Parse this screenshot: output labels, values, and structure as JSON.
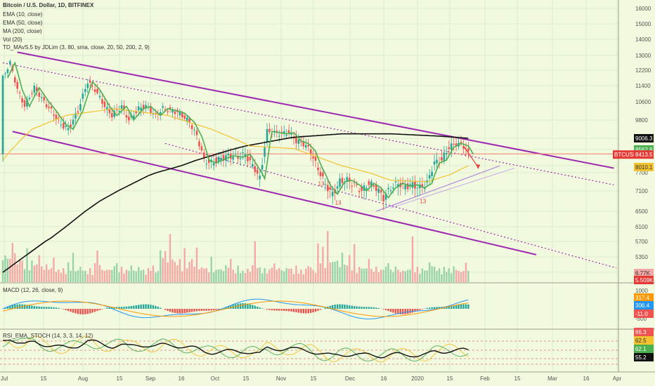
{
  "header": {
    "title": "Bitcoin / U.S. Dollar, 1D, BITFINEX",
    "indicators": [
      "EMA (10, close)",
      "EMA (50, close)",
      "MA (200, close)",
      "Vol (20)",
      "TD_MAvS.5 by JDLim (3, 80, sma, close, 20, 50, 200, 2, 9)"
    ]
  },
  "panes": {
    "macd_label": "MACD (12, 26, close, 9)",
    "rsi_label": "RSI_EMA_STOCH (14, 3, 3, 14, 12)"
  },
  "colors": {
    "background": "#f1fadf",
    "up": "#26a69a",
    "down": "#ef5350",
    "channel": "#9c27b0",
    "ema10": "#4caf50",
    "ema50": "#f2c230",
    "ma200": "#111111",
    "resistance": "#f77c6a"
  },
  "chart_data": {
    "type": "candlestick",
    "symbol": "BTCUSD",
    "timeframe": "1D",
    "exchange": "BITFINEX",
    "x_ticks": [
      "Jul",
      "15",
      "Aug",
      "15",
      "Sep",
      "16",
      "Oct",
      "15",
      "Nov",
      "15",
      "Dec",
      "16",
      "2020",
      "15",
      "Feb",
      "15",
      "Mar",
      "16",
      "Apr"
    ],
    "y_ticks": [
      16000,
      15000,
      14000,
      13000,
      12200,
      11400,
      10600,
      9800,
      9006.3,
      8562.9,
      8010.1,
      7700,
      7100,
      6500,
      6100,
      5700,
      5350,
      5000
    ],
    "price_labels": [
      {
        "text": "9006.3",
        "value": 9006.3
      },
      {
        "text": "8562.9",
        "value": 8562.9
      },
      {
        "text": "BTCUSD",
        "value": 8413.5
      },
      {
        "text": "8413.5",
        "value": 8413.5
      },
      {
        "text": "8010.1",
        "value": 8010.1
      }
    ],
    "volume_labels": [
      "6.77K",
      "5.509K"
    ],
    "close_path": [
      [
        0,
        11800
      ],
      [
        3,
        12600
      ],
      [
        6,
        11200
      ],
      [
        9,
        10400
      ],
      [
        13,
        11300
      ],
      [
        17,
        10600
      ],
      [
        20,
        10200
      ],
      [
        24,
        9600
      ],
      [
        27,
        9400
      ],
      [
        31,
        10200
      ],
      [
        35,
        11600
      ],
      [
        38,
        11200
      ],
      [
        42,
        10400
      ],
      [
        45,
        10000
      ],
      [
        49,
        10400
      ],
      [
        52,
        9800
      ],
      [
        56,
        10300
      ],
      [
        59,
        10400
      ],
      [
        63,
        10000
      ],
      [
        66,
        10300
      ],
      [
        70,
        10200
      ],
      [
        73,
        10100
      ],
      [
        77,
        9700
      ],
      [
        80,
        9100
      ],
      [
        83,
        8200
      ],
      [
        86,
        8100
      ],
      [
        90,
        8250
      ],
      [
        93,
        8350
      ],
      [
        97,
        8300
      ],
      [
        100,
        8400
      ],
      [
        103,
        8000
      ],
      [
        106,
        7500
      ],
      [
        109,
        9300
      ],
      [
        112,
        9250
      ],
      [
        115,
        9200
      ],
      [
        118,
        9250
      ],
      [
        121,
        8900
      ],
      [
        124,
        8800
      ],
      [
        127,
        8500
      ],
      [
        130,
        7850
      ],
      [
        133,
        7300
      ],
      [
        136,
        7000
      ],
      [
        139,
        7400
      ],
      [
        142,
        7450
      ],
      [
        145,
        7300
      ],
      [
        148,
        7100
      ],
      [
        151,
        7350
      ],
      [
        154,
        7200
      ],
      [
        157,
        6900
      ],
      [
        160,
        7200
      ],
      [
        163,
        7350
      ],
      [
        166,
        7250
      ],
      [
        169,
        7300
      ],
      [
        172,
        7200
      ],
      [
        175,
        7350
      ],
      [
        178,
        8100
      ],
      [
        181,
        8200
      ],
      [
        184,
        8650
      ],
      [
        187,
        8800
      ],
      [
        190,
        8700
      ],
      [
        192,
        8400
      ]
    ],
    "ema50_path": [
      [
        0,
        8200
      ],
      [
        12,
        9400
      ],
      [
        26,
        10000
      ],
      [
        46,
        10300
      ],
      [
        68,
        10000
      ],
      [
        86,
        9400
      ],
      [
        102,
        8700
      ],
      [
        120,
        8600
      ],
      [
        140,
        8000
      ],
      [
        160,
        7450
      ],
      [
        175,
        7400
      ],
      [
        185,
        7650
      ],
      [
        192,
        8010.1
      ]
    ],
    "ma200_path": [
      [
        0,
        5000
      ],
      [
        20,
        5800
      ],
      [
        40,
        6800
      ],
      [
        60,
        7600
      ],
      [
        80,
        8200
      ],
      [
        100,
        8700
      ],
      [
        120,
        9050
      ],
      [
        140,
        9200
      ],
      [
        160,
        9200
      ],
      [
        180,
        9100
      ],
      [
        192,
        9006.3
      ]
    ],
    "volume": [
      3.2,
      2.1,
      2.8,
      1.9,
      4.0,
      2.5,
      1.6,
      2.2,
      1.8,
      1.4,
      2.7,
      1.5,
      1.7,
      2.2,
      1.4,
      3.0,
      1.3,
      1.2,
      1.6,
      1.1,
      1.4,
      2.0,
      1.2,
      1.0,
      1.3,
      1.1,
      1.0,
      1.6,
      1.2,
      2.5,
      1.0,
      1.1,
      1.3,
      1.2,
      0.9,
      1.0,
      1.1,
      1.0,
      1.5,
      3.6,
      1.4,
      1.2,
      1.0,
      1.1,
      1.2,
      1.0,
      1.8,
      1.5,
      1.3,
      1.2,
      1.1,
      1.0,
      1.2,
      1.4,
      1.1,
      1.0,
      1.3,
      1.2,
      1.0,
      0.9,
      1.1,
      1.6,
      1.3,
      1.1,
      0.9
    ],
    "macd_labels": [
      "1000",
      "500",
      "0",
      "-500",
      "317.4",
      "306.4",
      "-11.0"
    ],
    "rsi_labels": [
      "66.3",
      "62.5",
      "62.1",
      "55.2"
    ],
    "annotations": [
      "13",
      "13",
      "13"
    ]
  }
}
